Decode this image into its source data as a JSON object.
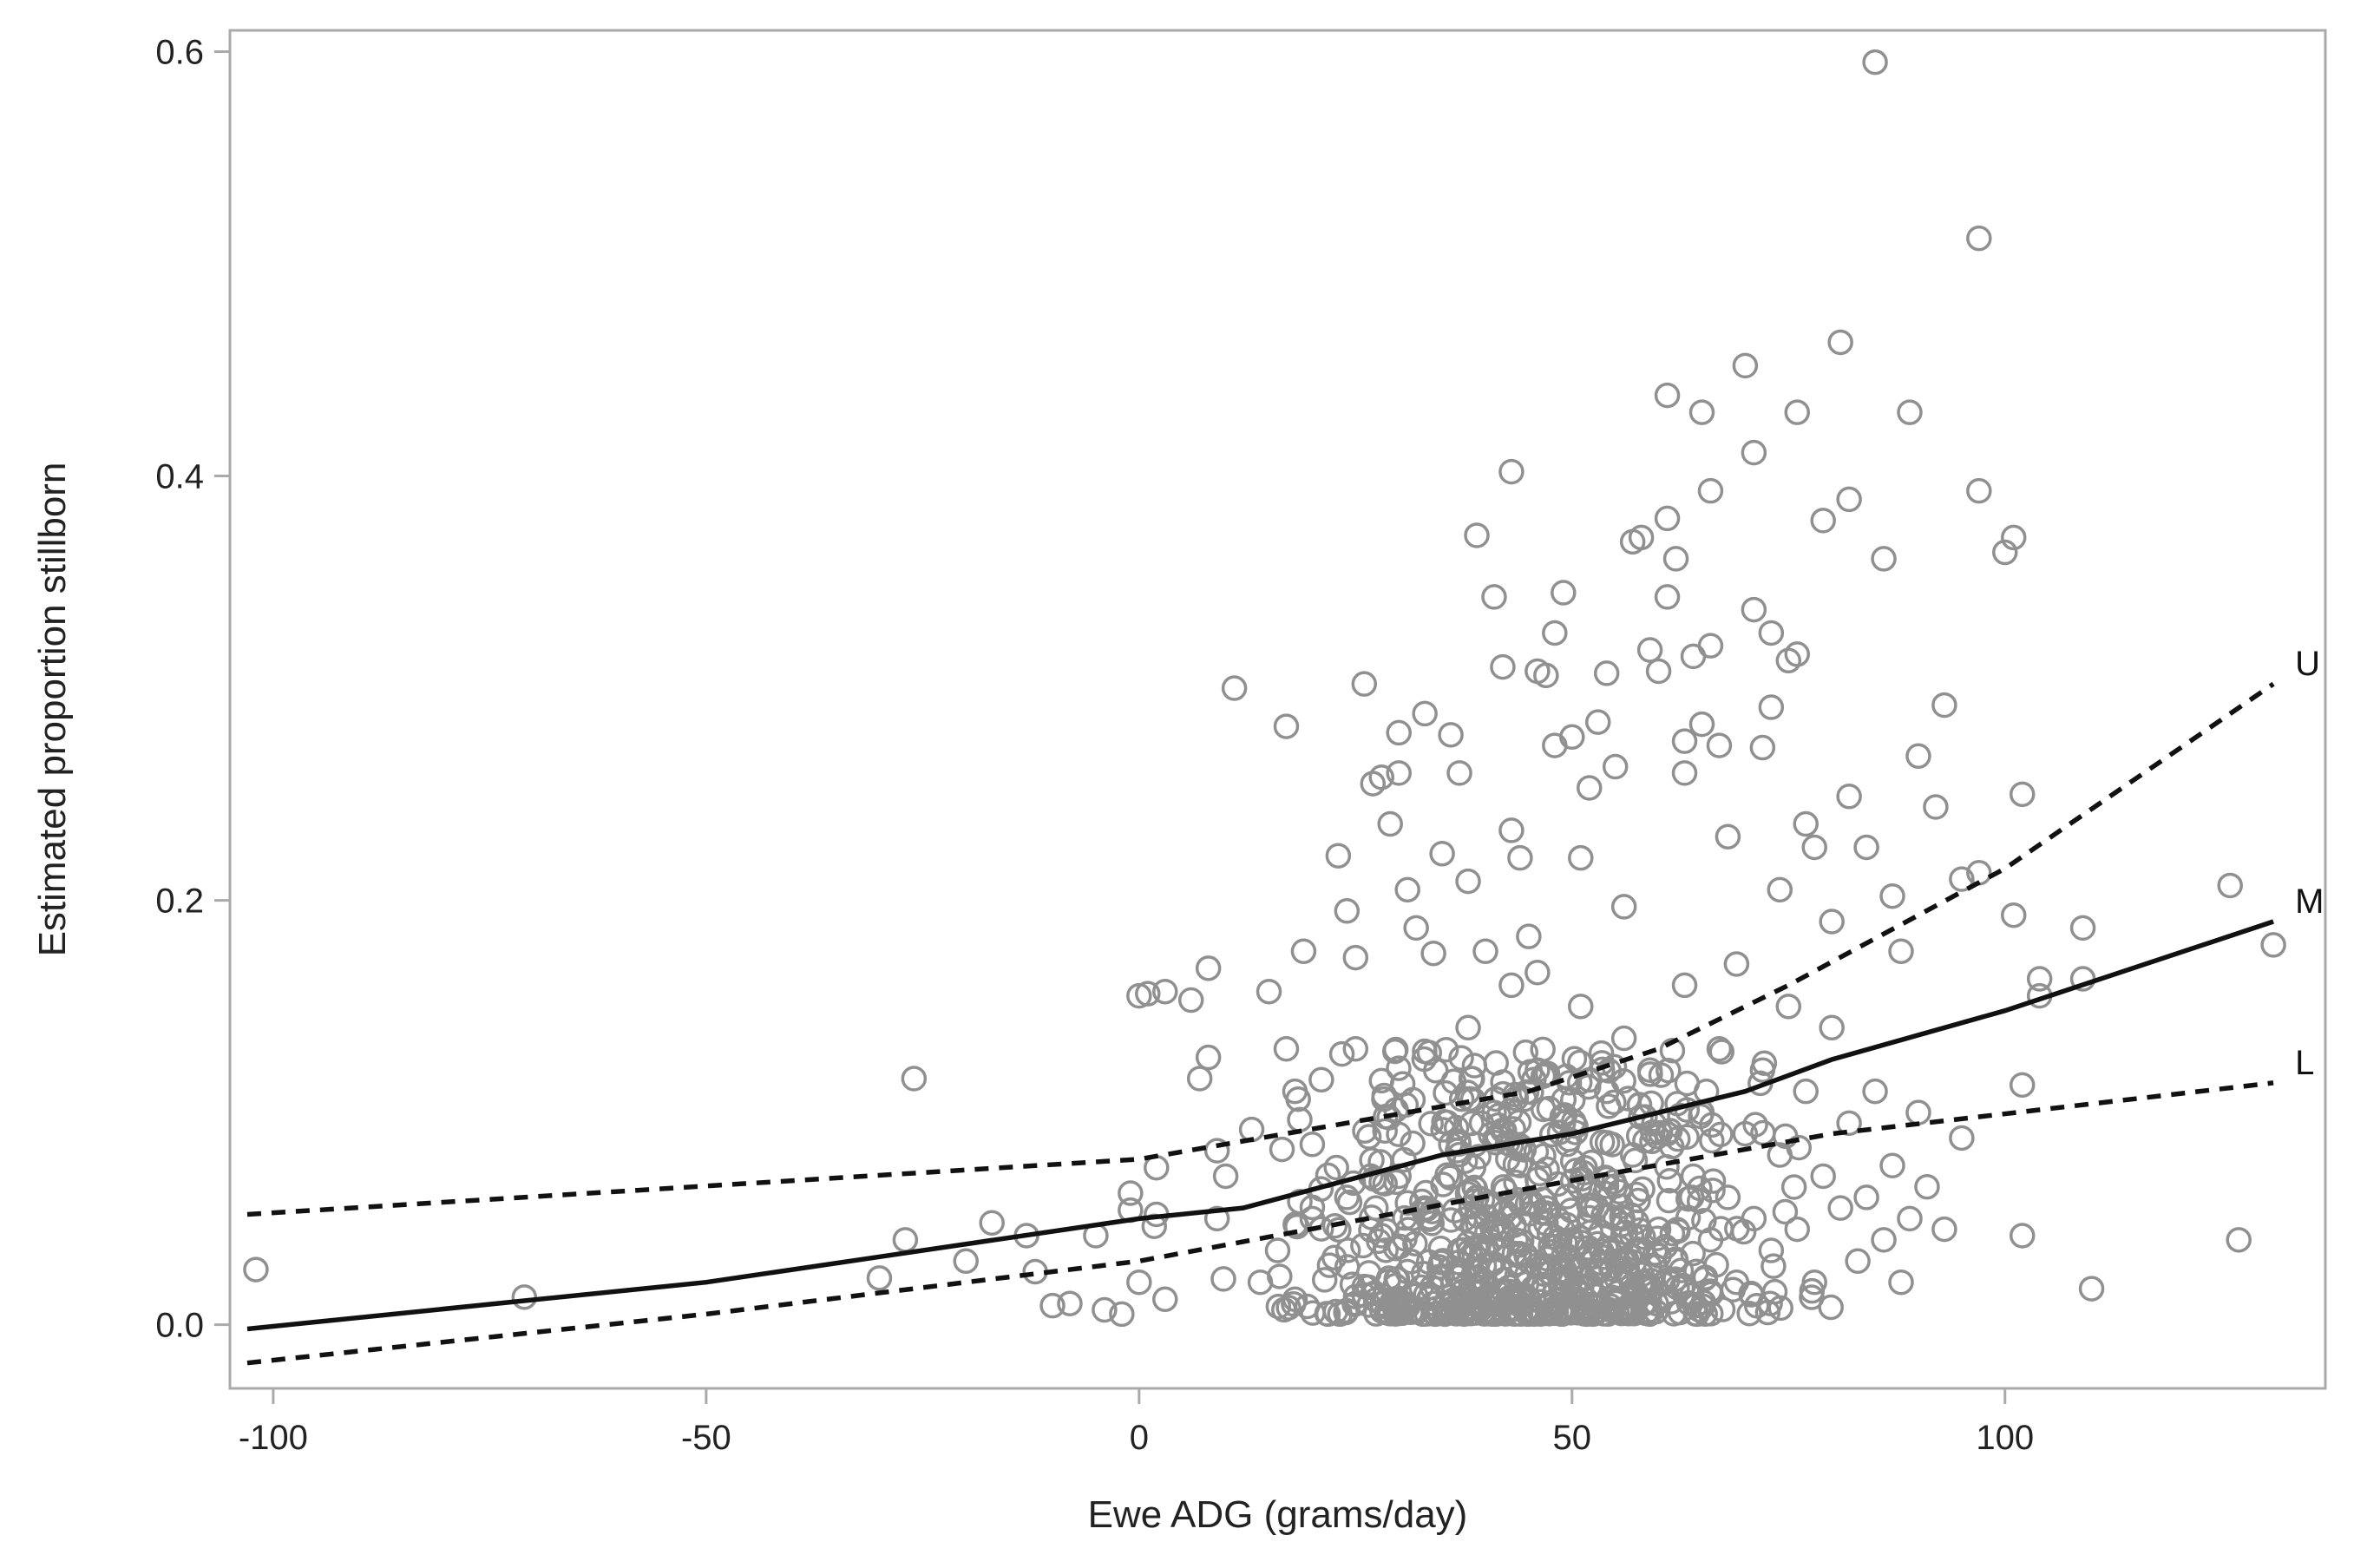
{
  "chart_data": {
    "type": "scatter",
    "title": "",
    "xlabel": "Ewe ADG (grams/day)",
    "ylabel": "Estimated proportion stillborn",
    "xlim": [
      -105,
      137
    ],
    "ylim": [
      -0.03,
      0.61
    ],
    "xticks": [
      -100,
      -50,
      0,
      50,
      100
    ],
    "xtick_labels": [
      "-100",
      "-50",
      "0",
      "50",
      "100"
    ],
    "yticks": [
      0.0,
      0.2,
      0.4,
      0.6
    ],
    "ytick_labels": [
      "0.0",
      "0.2",
      "0.4",
      "0.6"
    ],
    "grid": false,
    "colors": {
      "points": "#909090",
      "lines": "#111111",
      "frame": "#aaaaaa"
    },
    "lines": [
      {
        "name": "U",
        "style": "dashed",
        "label": "U",
        "x": [
          -103,
          0,
          45,
          60,
          75,
          100,
          131
        ],
        "y": [
          0.052,
          0.078,
          0.11,
          0.13,
          0.16,
          0.215,
          0.302
        ]
      },
      {
        "name": "M",
        "style": "solid",
        "label": "M",
        "x": [
          -103,
          -50,
          0,
          12,
          35,
          50,
          70,
          80,
          100,
          131
        ],
        "y": [
          -0.002,
          0.02,
          0.05,
          0.055,
          0.08,
          0.09,
          0.11,
          0.125,
          0.148,
          0.19
        ]
      },
      {
        "name": "L",
        "style": "dashed",
        "label": "L",
        "x": [
          -103,
          -50,
          0,
          50,
          80,
          131
        ],
        "y": [
          -0.018,
          0.005,
          0.03,
          0.068,
          0.09,
          0.114
        ]
      }
    ],
    "series": [
      {
        "name": "observed",
        "points": [
          [
            -102,
            0.026
          ],
          [
            -71,
            0.013
          ],
          [
            -26,
            0.116
          ],
          [
            -27,
            0.04
          ],
          [
            -30,
            0.022
          ],
          [
            -20,
            0.03
          ],
          [
            -17,
            0.048
          ],
          [
            -13,
            0.042
          ],
          [
            -10,
            0.009
          ],
          [
            -12,
            0.025
          ],
          [
            -8,
            0.01
          ],
          [
            -5,
            0.042
          ],
          [
            -4,
            0.007
          ],
          [
            -2,
            0.005
          ],
          [
            -1,
            0.062
          ],
          [
            -1,
            0.054
          ],
          [
            0,
            0.02
          ],
          [
            2,
            0.074
          ],
          [
            2,
            0.052
          ],
          [
            3,
            0.012
          ],
          [
            0,
            0.155
          ],
          [
            1,
            0.156
          ],
          [
            3,
            0.157
          ],
          [
            6,
            0.153
          ],
          [
            8,
            0.168
          ],
          [
            8,
            0.126
          ],
          [
            7,
            0.116
          ],
          [
            9,
            0.082
          ],
          [
            10,
            0.07
          ],
          [
            9,
            0.05
          ],
          [
            11,
            0.3
          ],
          [
            13,
            0.092
          ],
          [
            15,
            0.157
          ],
          [
            17,
            0.282
          ],
          [
            17,
            0.13
          ],
          [
            18,
            0.11
          ],
          [
            19,
            0.176
          ],
          [
            20,
            0.085
          ],
          [
            21,
            0.064
          ],
          [
            23,
            0.221
          ],
          [
            24,
            0.195
          ],
          [
            25,
            0.173
          ],
          [
            25,
            0.13
          ],
          [
            26,
            0.302
          ],
          [
            27,
            0.255
          ],
          [
            28,
            0.258
          ],
          [
            28,
            0.115
          ],
          [
            29,
            0.236
          ],
          [
            30,
            0.26
          ],
          [
            30,
            0.279
          ],
          [
            31,
            0.205
          ],
          [
            32,
            0.187
          ],
          [
            33,
            0.288
          ],
          [
            34,
            0.175
          ],
          [
            35,
            0.222
          ],
          [
            36,
            0.278
          ],
          [
            37,
            0.26
          ],
          [
            38,
            0.209
          ],
          [
            39,
            0.372
          ],
          [
            40,
            0.176
          ],
          [
            41,
            0.343
          ],
          [
            42,
            0.31
          ],
          [
            43,
            0.402
          ],
          [
            43,
            0.233
          ],
          [
            44,
            0.22
          ],
          [
            45,
            0.183
          ],
          [
            46,
            0.166
          ],
          [
            46,
            0.308
          ],
          [
            47,
            0.306
          ],
          [
            48,
            0.273
          ],
          [
            48,
            0.326
          ],
          [
            49,
            0.345
          ],
          [
            50,
            0.277
          ],
          [
            51,
            0.22
          ],
          [
            52,
            0.253
          ],
          [
            53,
            0.284
          ],
          [
            54,
            0.307
          ],
          [
            55,
            0.263
          ],
          [
            56,
            0.197
          ],
          [
            57,
            0.369
          ],
          [
            58,
            0.371
          ],
          [
            59,
            0.318
          ],
          [
            60,
            0.308
          ],
          [
            61,
            0.438
          ],
          [
            61,
            0.343
          ],
          [
            61,
            0.38
          ],
          [
            62,
            0.361
          ],
          [
            63,
            0.275
          ],
          [
            63,
            0.26
          ],
          [
            64,
            0.315
          ],
          [
            65,
            0.43
          ],
          [
            65,
            0.283
          ],
          [
            66,
            0.393
          ],
          [
            66,
            0.32
          ],
          [
            67,
            0.273
          ],
          [
            68,
            0.23
          ],
          [
            69,
            0.17
          ],
          [
            70,
            0.452
          ],
          [
            71,
            0.411
          ],
          [
            71,
            0.337
          ],
          [
            72,
            0.272
          ],
          [
            73,
            0.326
          ],
          [
            73,
            0.291
          ],
          [
            74,
            0.205
          ],
          [
            75,
            0.313
          ],
          [
            76,
            0.316
          ],
          [
            76,
            0.43
          ],
          [
            77,
            0.236
          ],
          [
            78,
            0.225
          ],
          [
            79,
            0.379
          ],
          [
            80,
            0.19
          ],
          [
            81,
            0.463
          ],
          [
            82,
            0.389
          ],
          [
            82,
            0.249
          ],
          [
            84,
            0.225
          ],
          [
            85,
            0.595
          ],
          [
            86,
            0.361
          ],
          [
            87,
            0.202
          ],
          [
            88,
            0.176
          ],
          [
            89,
            0.43
          ],
          [
            90,
            0.268
          ],
          [
            92,
            0.244
          ],
          [
            93,
            0.292
          ],
          [
            95,
            0.21
          ],
          [
            97,
            0.213
          ],
          [
            97,
            0.393
          ],
          [
            97,
            0.512
          ],
          [
            100,
            0.364
          ],
          [
            101,
            0.193
          ],
          [
            101,
            0.371
          ],
          [
            102,
            0.25
          ],
          [
            102,
            0.113
          ],
          [
            102,
            0.042
          ],
          [
            104,
            0.163
          ],
          [
            104,
            0.155
          ],
          [
            109,
            0.187
          ],
          [
            109,
            0.163
          ],
          [
            110,
            0.017
          ],
          [
            126,
            0.207
          ],
          [
            127,
            0.04
          ],
          [
            131,
            0.179
          ],
          [
            14,
            0.02
          ],
          [
            16,
            0.035
          ],
          [
            18,
            0.012
          ],
          [
            20,
            0.05
          ],
          [
            22,
            0.028
          ],
          [
            24,
            0.06
          ],
          [
            26,
            0.018
          ],
          [
            28,
            0.042
          ],
          [
            30,
            0.07
          ],
          [
            31,
            0.025
          ],
          [
            33,
            0.055
          ],
          [
            34,
            0.01
          ],
          [
            36,
            0.085
          ],
          [
            37,
            0.035
          ],
          [
            38,
            0.14
          ],
          [
            39,
            0.06
          ],
          [
            40,
            0.02
          ],
          [
            41,
            0.1
          ],
          [
            42,
            0.045
          ],
          [
            43,
            0.16
          ],
          [
            44,
            0.075
          ],
          [
            45,
            0.03
          ],
          [
            46,
            0.12
          ],
          [
            47,
            0.055
          ],
          [
            48,
            0.015
          ],
          [
            49,
            0.095
          ],
          [
            50,
            0.04
          ],
          [
            51,
            0.15
          ],
          [
            52,
            0.065
          ],
          [
            53,
            0.025
          ],
          [
            54,
            0.11
          ],
          [
            55,
            0.05
          ],
          [
            56,
            0.135
          ],
          [
            57,
            0.08
          ],
          [
            58,
            0.02
          ],
          [
            59,
            0.12
          ],
          [
            60,
            0.045
          ],
          [
            61,
            0.09
          ],
          [
            62,
            0.03
          ],
          [
            63,
            0.16
          ],
          [
            64,
            0.07
          ],
          [
            65,
            0.1
          ],
          [
            66,
            0.04
          ],
          [
            67,
            0.13
          ],
          [
            68,
            0.06
          ],
          [
            69,
            0.02
          ],
          [
            70,
            0.09
          ],
          [
            71,
            0.05
          ],
          [
            72,
            0.12
          ],
          [
            73,
            0.035
          ],
          [
            74,
            0.08
          ],
          [
            75,
            0.15
          ],
          [
            76,
            0.045
          ],
          [
            77,
            0.11
          ],
          [
            78,
            0.02
          ],
          [
            79,
            0.07
          ],
          [
            80,
            0.14
          ],
          [
            81,
            0.055
          ],
          [
            82,
            0.095
          ],
          [
            83,
            0.03
          ],
          [
            84,
            0.06
          ],
          [
            85,
            0.11
          ],
          [
            86,
            0.04
          ],
          [
            87,
            0.075
          ],
          [
            88,
            0.02
          ],
          [
            89,
            0.05
          ],
          [
            90,
            0.1
          ],
          [
            91,
            0.065
          ],
          [
            93,
            0.045
          ],
          [
            95,
            0.088
          ]
        ]
      }
    ],
    "cloud": {
      "x_mean": 45,
      "x_sd": 17,
      "y_max": 0.13,
      "y_min": 0.005,
      "count": 700,
      "seed": 7
    }
  }
}
